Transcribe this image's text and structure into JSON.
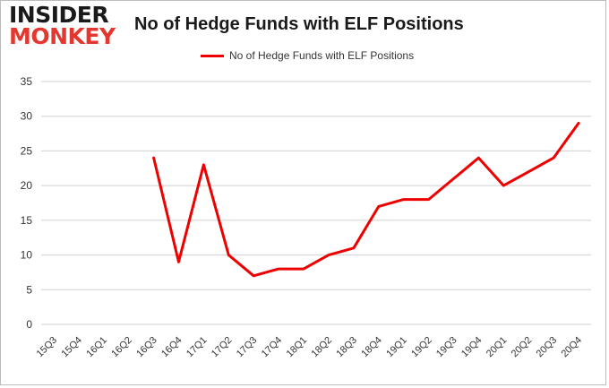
{
  "logo": {
    "line1": "INSIDER",
    "line2": "MONKEY"
  },
  "colors": {
    "series": "#ee0000",
    "grid": "#d0d0d0",
    "axis_text": "#333333",
    "logo_red": "#e3372f"
  },
  "chart_data": {
    "type": "line",
    "title": "No of Hedge Funds with ELF Positions",
    "xlabel": "",
    "ylabel": "",
    "ylim": [
      0,
      35
    ],
    "yticks": [
      0,
      5,
      10,
      15,
      20,
      25,
      30,
      35
    ],
    "grid": true,
    "legend_position": "top-center",
    "categories": [
      "15Q3",
      "15Q4",
      "16Q1",
      "16Q2",
      "16Q3",
      "16Q4",
      "17Q1",
      "17Q2",
      "17Q3",
      "17Q4",
      "18Q1",
      "18Q2",
      "18Q3",
      "18Q4",
      "19Q1",
      "19Q2",
      "19Q3",
      "19Q4",
      "20Q1",
      "20Q2",
      "20Q3",
      "20Q4"
    ],
    "series": [
      {
        "name": "No of Hedge Funds with ELF Positions",
        "values": [
          null,
          null,
          null,
          null,
          24,
          9,
          23,
          10,
          7,
          8,
          8,
          10,
          11,
          17,
          18,
          18,
          21,
          24,
          20,
          22,
          24,
          29
        ]
      }
    ]
  }
}
